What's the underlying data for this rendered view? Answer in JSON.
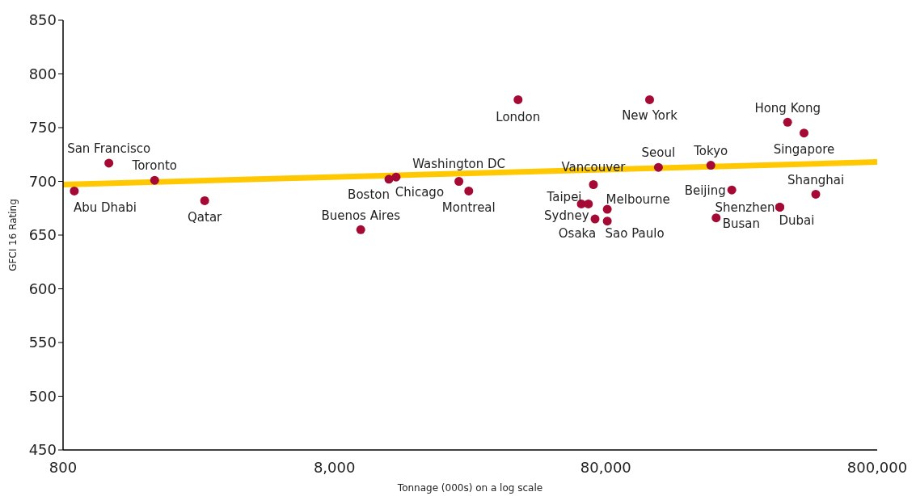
{
  "chart_data": {
    "type": "scatter",
    "xlabel": "Tonnage (000s) on a log scale",
    "ylabel": "GFCI 16 Rating",
    "log": "x",
    "xlim": [
      800,
      800000
    ],
    "xticks": [
      800,
      {
        "value": 8000,
        "label": "8,000"
      },
      {
        "value": 80000,
        "label": "80,000"
      },
      {
        "value": 800000,
        "label": "800,000"
      }
    ],
    "ylim": [
      450,
      850
    ],
    "yticks": [
      450,
      500,
      550,
      600,
      650,
      700,
      750,
      800,
      850
    ],
    "grid": false,
    "series": [
      {
        "marker": "circle",
        "color": "#a50a35",
        "x": [
          880,
          1180,
          1740,
          2660,
          10000,
          12700,
          13500,
          23000,
          25000,
          38000,
          65000,
          72000,
          69000,
          73000,
          81000,
          81000,
          116000,
          125000,
          195000,
          233000,
          204000,
          350000,
          350000,
          374000,
          430000,
          475000
        ],
        "values": [
          691,
          717,
          701,
          682,
          655,
          702,
          704,
          700,
          691,
          776,
          679,
          697,
          679,
          665,
          674,
          663,
          776,
          713,
          715,
          692,
          666,
          676,
          676,
          755,
          745,
          688
        ]
      },
      {
        "type": "line",
        "color": "#ffc800",
        "x": [
          800,
          800000
        ],
        "values": [
          697,
          718
        ]
      }
    ],
    "annotations": [
      {
        "text": "Abu Dhabi",
        "x": 880,
        "y": 691
      },
      {
        "text": "San Francisco",
        "x": 1180,
        "y": 717
      },
      {
        "text": "Toronto",
        "x": 1740,
        "y": 701
      },
      {
        "text": "Qatar",
        "x": 2660,
        "y": 682
      },
      {
        "text": "Buenos Aires",
        "x": 10000,
        "y": 655
      },
      {
        "text": "Boston",
        "x": 12700,
        "y": 702
      },
      {
        "text": "Chicago",
        "x": 13500,
        "y": 704
      },
      {
        "text": "Washington DC",
        "x": 23000,
        "y": 700
      },
      {
        "text": "Montreal",
        "x": 25000,
        "y": 691
      },
      {
        "text": "London",
        "x": 38000,
        "y": 776
      },
      {
        "text": "Taipei",
        "x": 65000,
        "y": 679
      },
      {
        "text": "Vancouver",
        "x": 72000,
        "y": 697
      },
      {
        "text": "Sydney",
        "x": 69000,
        "y": 679
      },
      {
        "text": "Osaka",
        "x": 73000,
        "y": 665
      },
      {
        "text": "Melbourne",
        "x": 81000,
        "y": 674
      },
      {
        "text": "Sao Paulo",
        "x": 81000,
        "y": 663
      },
      {
        "text": "New York",
        "x": 116000,
        "y": 776
      },
      {
        "text": "Seoul",
        "x": 125000,
        "y": 713
      },
      {
        "text": "Tokyo",
        "x": 195000,
        "y": 715
      },
      {
        "text": "Beijing",
        "x": 233000,
        "y": 692
      },
      {
        "text": "Busan",
        "x": 204000,
        "y": 666
      },
      {
        "text": "Shenzhen",
        "x": 350000,
        "y": 676
      },
      {
        "text": "Dubai",
        "x": 350000,
        "y": 676
      },
      {
        "text": "Hong Kong",
        "x": 374000,
        "y": 755
      },
      {
        "text": "Singapore",
        "x": 430000,
        "y": 745
      },
      {
        "text": "Shanghai",
        "x": 475000,
        "y": 688
      }
    ]
  }
}
